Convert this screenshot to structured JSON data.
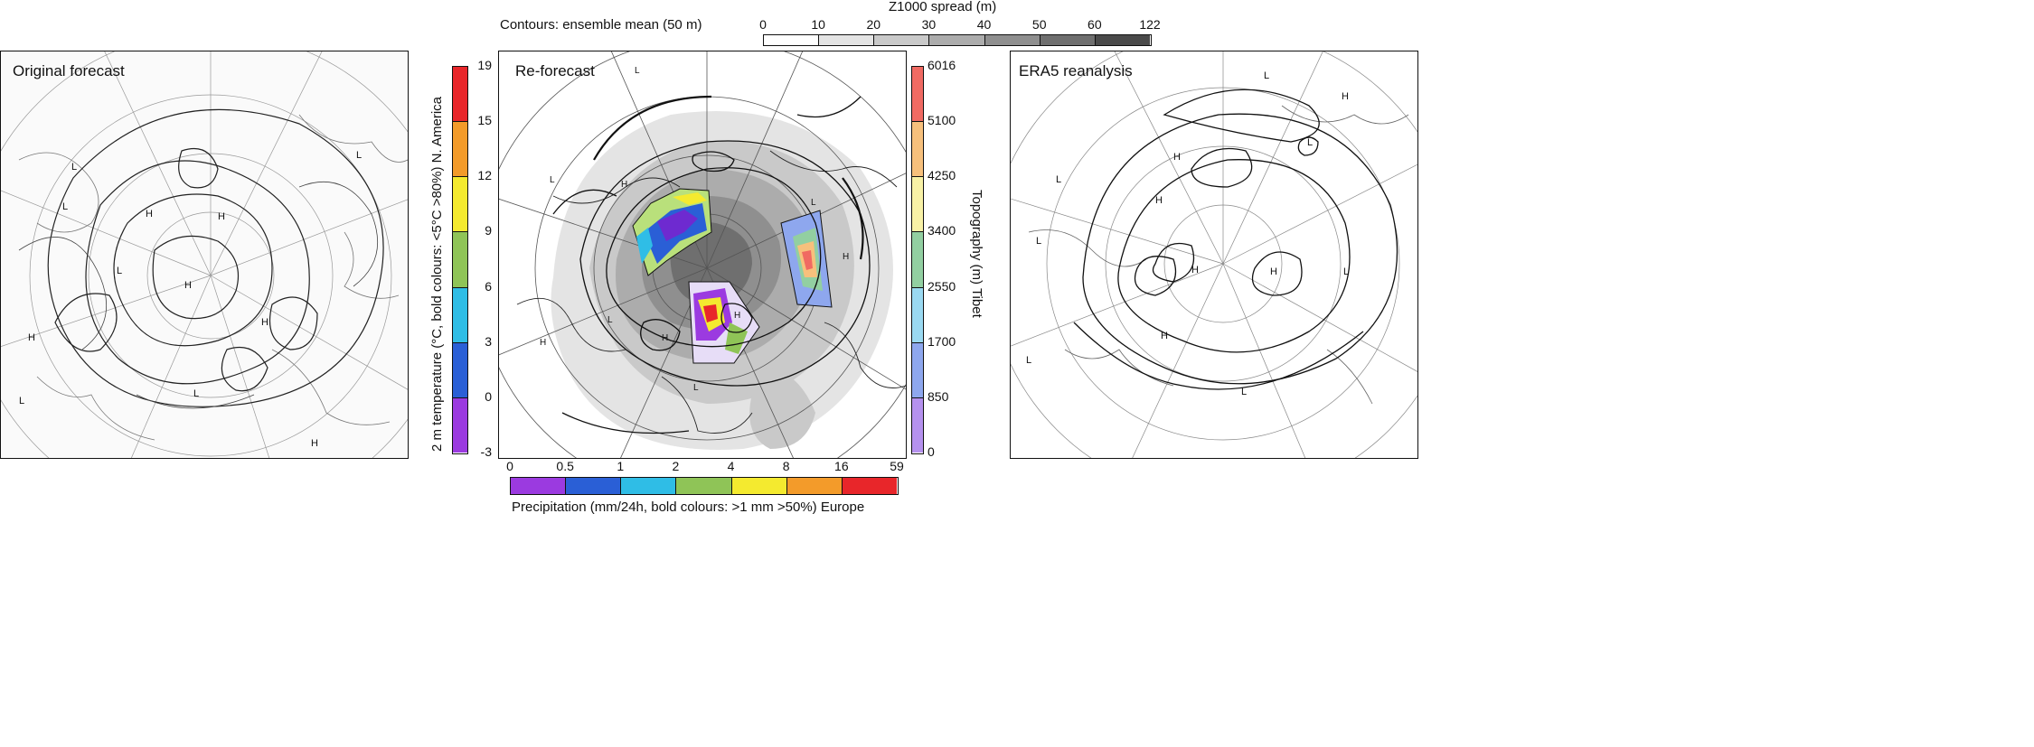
{
  "panels": {
    "original": {
      "title": "Original forecast"
    },
    "reforecast": {
      "title": "Re-forecast"
    },
    "era5": {
      "title": "ERA5 reanalysis"
    }
  },
  "top_legend": {
    "contours_label": "Contours: ensemble mean (50 m)",
    "spread_title": "Z1000 spread (m)",
    "ticks": [
      "0",
      "10",
      "20",
      "30",
      "40",
      "50",
      "60",
      "122"
    ],
    "colors": [
      "#ffffff",
      "#e4e4e4",
      "#c9c9c9",
      "#acacac",
      "#8f8f8f",
      "#6f6f6f",
      "#4a4a4a"
    ]
  },
  "temperature_bar": {
    "label": "2 m temperature (°C, bold colours: <5°C >80%) N. America",
    "ticks": [
      "19",
      "15",
      "12",
      "9",
      "6",
      "3",
      "0",
      "-3"
    ],
    "colors": [
      "#e8262a",
      "#f39b2a",
      "#f4ea2f",
      "#8fc457",
      "#2fbde6",
      "#2a5fd6",
      "#9b3ae0"
    ]
  },
  "topography_bar": {
    "label": "Topography (m) Tibet",
    "ticks": [
      "6016",
      "5100",
      "4250",
      "3400",
      "2550",
      "1700",
      "850",
      "0"
    ],
    "colors": [
      "#f06a62",
      "#f7c07c",
      "#f8f1a6",
      "#92cfa1",
      "#9ad9f1",
      "#8ea7ee",
      "#b591ee"
    ]
  },
  "precip_bar": {
    "label": "Precipitation (mm/24h, bold colours: >1 mm >50%) Europe",
    "ticks": [
      "0",
      "0.5",
      "1",
      "2",
      "4",
      "8",
      "16",
      "59"
    ],
    "colors": [
      "#9b3ae0",
      "#2a5fd6",
      "#2fbde6",
      "#8fc457",
      "#f4ea2f",
      "#f39b2a",
      "#e8262a"
    ]
  },
  "map_labels": {
    "high": "H",
    "low": "L"
  }
}
